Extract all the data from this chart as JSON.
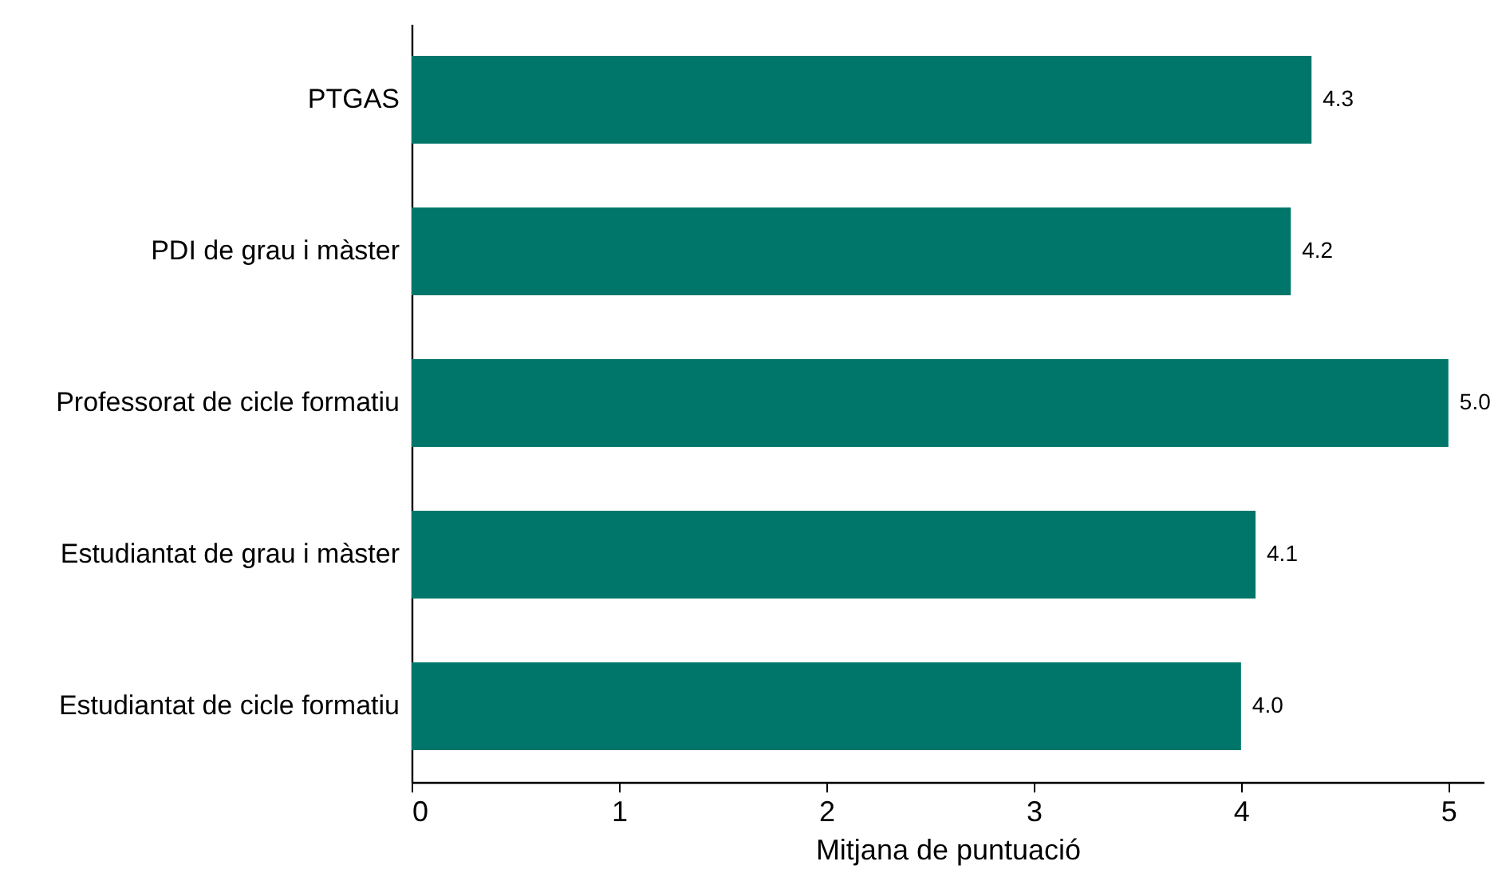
{
  "chart_data": {
    "type": "bar",
    "orientation": "horizontal",
    "xlabel": "Mitjana de puntuació",
    "categories": [
      "PTGAS",
      "PDI de grau i màster",
      "Professorat de cicle formatiu",
      "Estudiantat de grau i màster",
      "Estudiantat de cicle formatiu"
    ],
    "values": [
      4.34,
      4.24,
      5.0,
      4.07,
      4.0
    ],
    "value_labels": [
      "4.3",
      "4.2",
      "5.0",
      "4.1",
      "4.0"
    ],
    "color": "#00766a",
    "xlim": [
      0,
      5.17
    ],
    "xticks": [
      0,
      1,
      2,
      3,
      4,
      5
    ]
  }
}
